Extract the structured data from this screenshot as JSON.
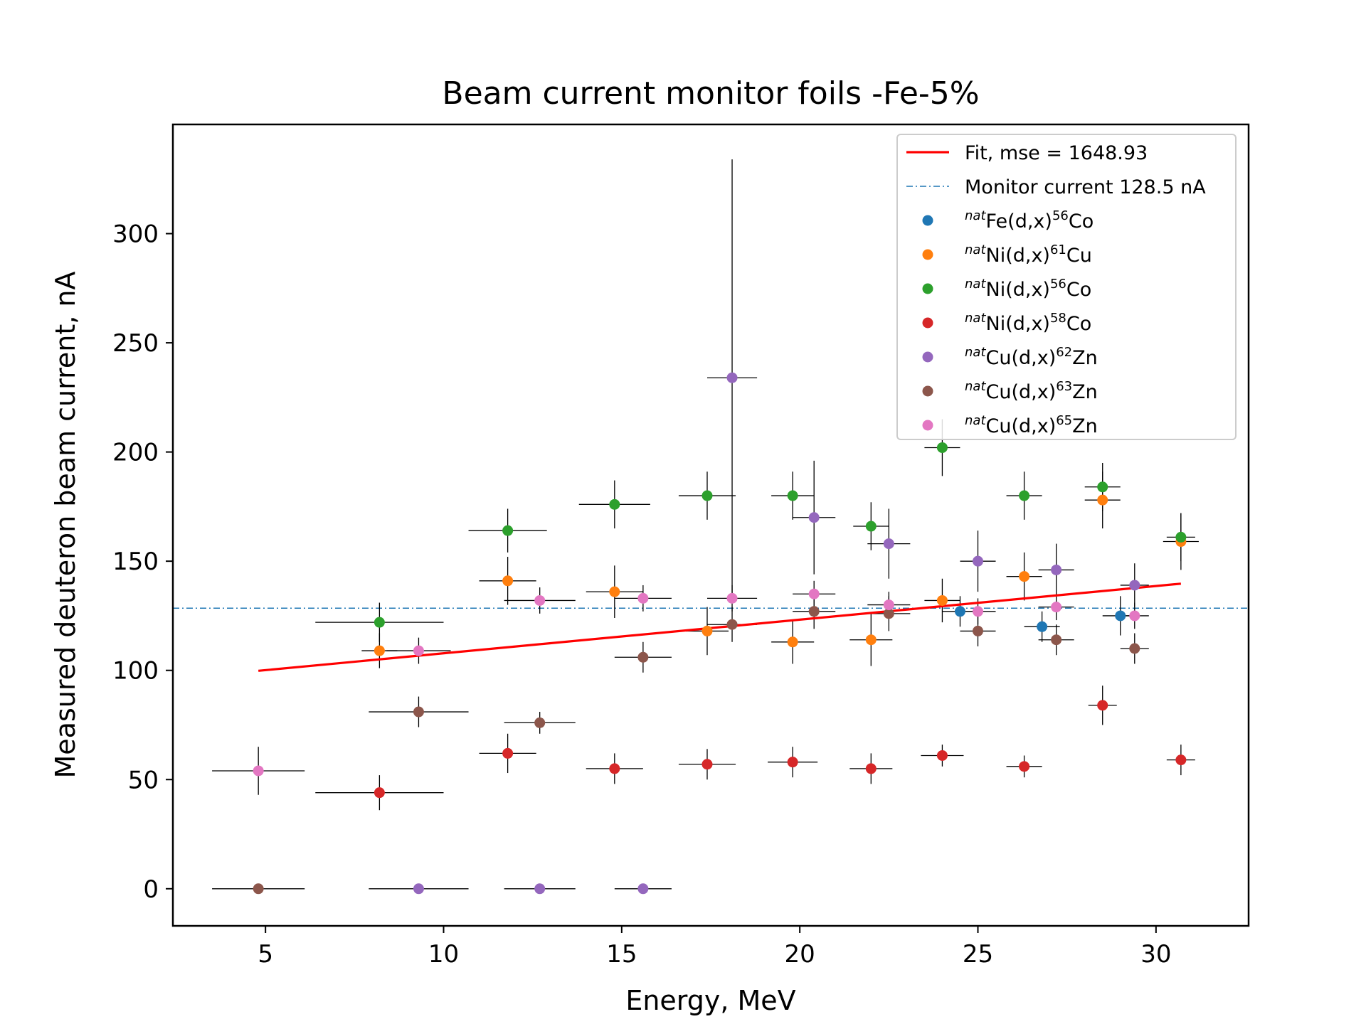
{
  "chart_data": {
    "type": "scatter",
    "title": "Beam current monitor foils -Fe-5%",
    "xlabel": "Energy, MeV",
    "ylabel": "Measured deuteron beam current, nA",
    "xlim": [
      2.4,
      32.6
    ],
    "ylim": [
      -17,
      350
    ],
    "xticks": [
      5,
      10,
      15,
      20,
      25,
      30
    ],
    "yticks": [
      0,
      50,
      100,
      150,
      200,
      250,
      300
    ],
    "grid": false,
    "legend_position": "top-right",
    "fit": {
      "label": "Fit, mse = 1648.93",
      "color": "#ff0000",
      "x": [
        4.8,
        30.7
      ],
      "y": [
        99.8,
        139.7
      ]
    },
    "monitor_line": {
      "label": "Monitor current 128.5 nA",
      "color": "#1f77b4",
      "value": 128.5
    },
    "series": [
      {
        "name": "Fe(d,x)Co",
        "prefix": "nat",
        "target": "Fe(d,x)",
        "mass": "56",
        "product": "Co",
        "color": "#1f77b4",
        "points": [
          {
            "x": 24.5,
            "y": 127,
            "xerr": 0.5,
            "yerr": 7
          },
          {
            "x": 26.8,
            "y": 120,
            "xerr": 0.5,
            "yerr": 7
          },
          {
            "x": 29.0,
            "y": 125,
            "xerr": 0.5,
            "yerr": 9
          }
        ]
      },
      {
        "name": "Ni(d,x)Cu",
        "prefix": "nat",
        "target": "Ni(d,x)",
        "mass": "61",
        "product": "Cu",
        "color": "#ff7f0e",
        "points": [
          {
            "x": 8.2,
            "y": 109,
            "xerr": 0.5,
            "yerr": 8
          },
          {
            "x": 11.8,
            "y": 141,
            "xerr": 0.8,
            "yerr": 11
          },
          {
            "x": 14.8,
            "y": 136,
            "xerr": 0.8,
            "yerr": 12
          },
          {
            "x": 17.4,
            "y": 118,
            "xerr": 0.6,
            "yerr": 11
          },
          {
            "x": 19.8,
            "y": 113,
            "xerr": 0.6,
            "yerr": 10
          },
          {
            "x": 22.0,
            "y": 114,
            "xerr": 0.6,
            "yerr": 12
          },
          {
            "x": 24.0,
            "y": 132,
            "xerr": 0.5,
            "yerr": 10
          },
          {
            "x": 26.3,
            "y": 143,
            "xerr": 0.5,
            "yerr": 11
          },
          {
            "x": 28.5,
            "y": 178,
            "xerr": 0.5,
            "yerr": 13
          },
          {
            "x": 30.7,
            "y": 159,
            "xerr": 0.5,
            "yerr": 13
          }
        ]
      },
      {
        "name": "Ni(d,x)Co",
        "prefix": "nat",
        "target": "Ni(d,x)",
        "mass": "56",
        "product": "Co",
        "color": "#2ca02c",
        "points": [
          {
            "x": 8.2,
            "y": 122,
            "xerr": 1.8,
            "yerr": 9
          },
          {
            "x": 11.8,
            "y": 164,
            "xerr": 1.1,
            "yerr": 10
          },
          {
            "x": 14.8,
            "y": 176,
            "xerr": 1.0,
            "yerr": 11
          },
          {
            "x": 17.4,
            "y": 180,
            "xerr": 0.8,
            "yerr": 11
          },
          {
            "x": 19.8,
            "y": 180,
            "xerr": 0.6,
            "yerr": 11
          },
          {
            "x": 22.0,
            "y": 166,
            "xerr": 0.5,
            "yerr": 11
          },
          {
            "x": 24.0,
            "y": 202,
            "xerr": 0.5,
            "yerr": 13
          },
          {
            "x": 26.3,
            "y": 180,
            "xerr": 0.5,
            "yerr": 11
          },
          {
            "x": 28.5,
            "y": 184,
            "xerr": 0.5,
            "yerr": 11
          },
          {
            "x": 30.7,
            "y": 161,
            "xerr": 0.4,
            "yerr": 11
          }
        ]
      },
      {
        "name": "Ni(d,x)Co",
        "prefix": "nat",
        "target": "Ni(d,x)",
        "mass": "58",
        "product": "Co",
        "color": "#d62728",
        "points": [
          {
            "x": 8.2,
            "y": 44,
            "xerr": 1.8,
            "yerr": 8
          },
          {
            "x": 11.8,
            "y": 62,
            "xerr": 0.8,
            "yerr": 9
          },
          {
            "x": 14.8,
            "y": 55,
            "xerr": 0.8,
            "yerr": 7
          },
          {
            "x": 17.4,
            "y": 57,
            "xerr": 0.8,
            "yerr": 7
          },
          {
            "x": 19.8,
            "y": 58,
            "xerr": 0.7,
            "yerr": 7
          },
          {
            "x": 22.0,
            "y": 55,
            "xerr": 0.6,
            "yerr": 7
          },
          {
            "x": 24.0,
            "y": 61,
            "xerr": 0.6,
            "yerr": 5
          },
          {
            "x": 26.3,
            "y": 56,
            "xerr": 0.5,
            "yerr": 5
          },
          {
            "x": 28.5,
            "y": 84,
            "xerr": 0.4,
            "yerr": 9
          },
          {
            "x": 30.7,
            "y": 59,
            "xerr": 0.4,
            "yerr": 7
          }
        ]
      },
      {
        "name": "Cu(d,x)Zn",
        "prefix": "nat",
        "target": "Cu(d,x)",
        "mass": "62",
        "product": "Zn",
        "color": "#9467bd",
        "points": [
          {
            "x": 9.3,
            "y": 0,
            "xerr": 1.4,
            "yerr": 0
          },
          {
            "x": 12.7,
            "y": 0,
            "xerr": 1.0,
            "yerr": 0
          },
          {
            "x": 15.6,
            "y": 0,
            "xerr": 0.8,
            "yerr": 0
          },
          {
            "x": 18.1,
            "y": 234,
            "xerr": 0.7,
            "yerr": 100
          },
          {
            "x": 20.4,
            "y": 170,
            "xerr": 0.6,
            "yerr": 26
          },
          {
            "x": 22.5,
            "y": 158,
            "xerr": 0.6,
            "yerr": 16
          },
          {
            "x": 25.0,
            "y": 150,
            "xerr": 0.5,
            "yerr": 14
          },
          {
            "x": 27.2,
            "y": 146,
            "xerr": 0.5,
            "yerr": 12
          },
          {
            "x": 29.4,
            "y": 139,
            "xerr": 0.4,
            "yerr": 10
          }
        ]
      },
      {
        "name": "Cu(d,x)Zn",
        "prefix": "nat",
        "target": "Cu(d,x)",
        "mass": "63",
        "product": "Zn",
        "color": "#8c564b",
        "points": [
          {
            "x": 4.8,
            "y": 0,
            "xerr": 1.3,
            "yerr": 0
          },
          {
            "x": 9.3,
            "y": 81,
            "xerr": 1.4,
            "yerr": 7
          },
          {
            "x": 12.7,
            "y": 76,
            "xerr": 1.0,
            "yerr": 5
          },
          {
            "x": 15.6,
            "y": 106,
            "xerr": 0.8,
            "yerr": 7
          },
          {
            "x": 18.1,
            "y": 121,
            "xerr": 0.7,
            "yerr": 8
          },
          {
            "x": 20.4,
            "y": 127,
            "xerr": 0.6,
            "yerr": 8
          },
          {
            "x": 22.5,
            "y": 126,
            "xerr": 0.6,
            "yerr": 8
          },
          {
            "x": 25.0,
            "y": 118,
            "xerr": 0.5,
            "yerr": 7
          },
          {
            "x": 27.2,
            "y": 114,
            "xerr": 0.5,
            "yerr": 7
          },
          {
            "x": 29.4,
            "y": 110,
            "xerr": 0.4,
            "yerr": 7
          }
        ]
      },
      {
        "name": "Cu(d,x)Zn",
        "prefix": "nat",
        "target": "Cu(d,x)",
        "mass": "65",
        "product": "Zn",
        "color": "#e377c2",
        "points": [
          {
            "x": 4.8,
            "y": 54,
            "xerr": 1.3,
            "yerr": 11
          },
          {
            "x": 9.3,
            "y": 109,
            "xerr": 0.9,
            "yerr": 6
          },
          {
            "x": 12.7,
            "y": 132,
            "xerr": 1.0,
            "yerr": 6
          },
          {
            "x": 15.6,
            "y": 133,
            "xerr": 0.8,
            "yerr": 6
          },
          {
            "x": 18.1,
            "y": 133,
            "xerr": 0.7,
            "yerr": 6
          },
          {
            "x": 20.4,
            "y": 135,
            "xerr": 0.6,
            "yerr": 6
          },
          {
            "x": 22.5,
            "y": 130,
            "xerr": 0.6,
            "yerr": 6
          },
          {
            "x": 25.0,
            "y": 127,
            "xerr": 0.5,
            "yerr": 6
          },
          {
            "x": 27.2,
            "y": 129,
            "xerr": 0.5,
            "yerr": 6
          },
          {
            "x": 29.4,
            "y": 125,
            "xerr": 0.4,
            "yerr": 6
          }
        ]
      }
    ]
  }
}
